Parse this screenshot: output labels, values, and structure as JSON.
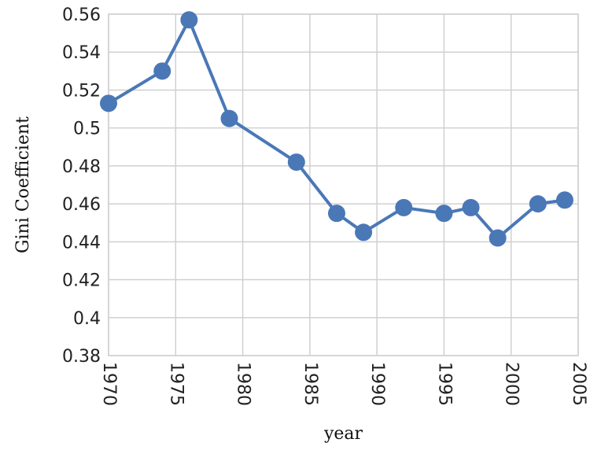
{
  "chart_data": {
    "type": "line",
    "title": "",
    "xlabel": "year",
    "ylabel": "Gini Coefficient",
    "xlim": [
      1970,
      2005
    ],
    "ylim": [
      0.38,
      0.56
    ],
    "x_ticks": [
      1970,
      1975,
      1980,
      1985,
      1990,
      1995,
      2000,
      2005
    ],
    "y_ticks": [
      0.38,
      0.4,
      0.42,
      0.44,
      0.46,
      0.48,
      0.5,
      0.52,
      0.54,
      0.56
    ],
    "x_tick_labels": [
      "1970",
      "1975",
      "1980",
      "1985",
      "1990",
      "1995",
      "2000",
      "2005"
    ],
    "y_tick_labels": [
      "0.38",
      "0.4",
      "0.42",
      "0.44",
      "0.46",
      "0.48",
      "0.5",
      "0.52",
      "0.54",
      "0.56"
    ],
    "grid": true,
    "legend": "none",
    "series": [
      {
        "color": "#4a78b7",
        "x": [
          1970,
          1974,
          1976,
          1979,
          1984,
          1987,
          1989,
          1992,
          1995,
          1997,
          1999,
          2002,
          2004
        ],
        "y": [
          0.513,
          0.53,
          0.557,
          0.505,
          0.482,
          0.455,
          0.445,
          0.458,
          0.455,
          0.458,
          0.442,
          0.46,
          0.462
        ]
      }
    ]
  }
}
